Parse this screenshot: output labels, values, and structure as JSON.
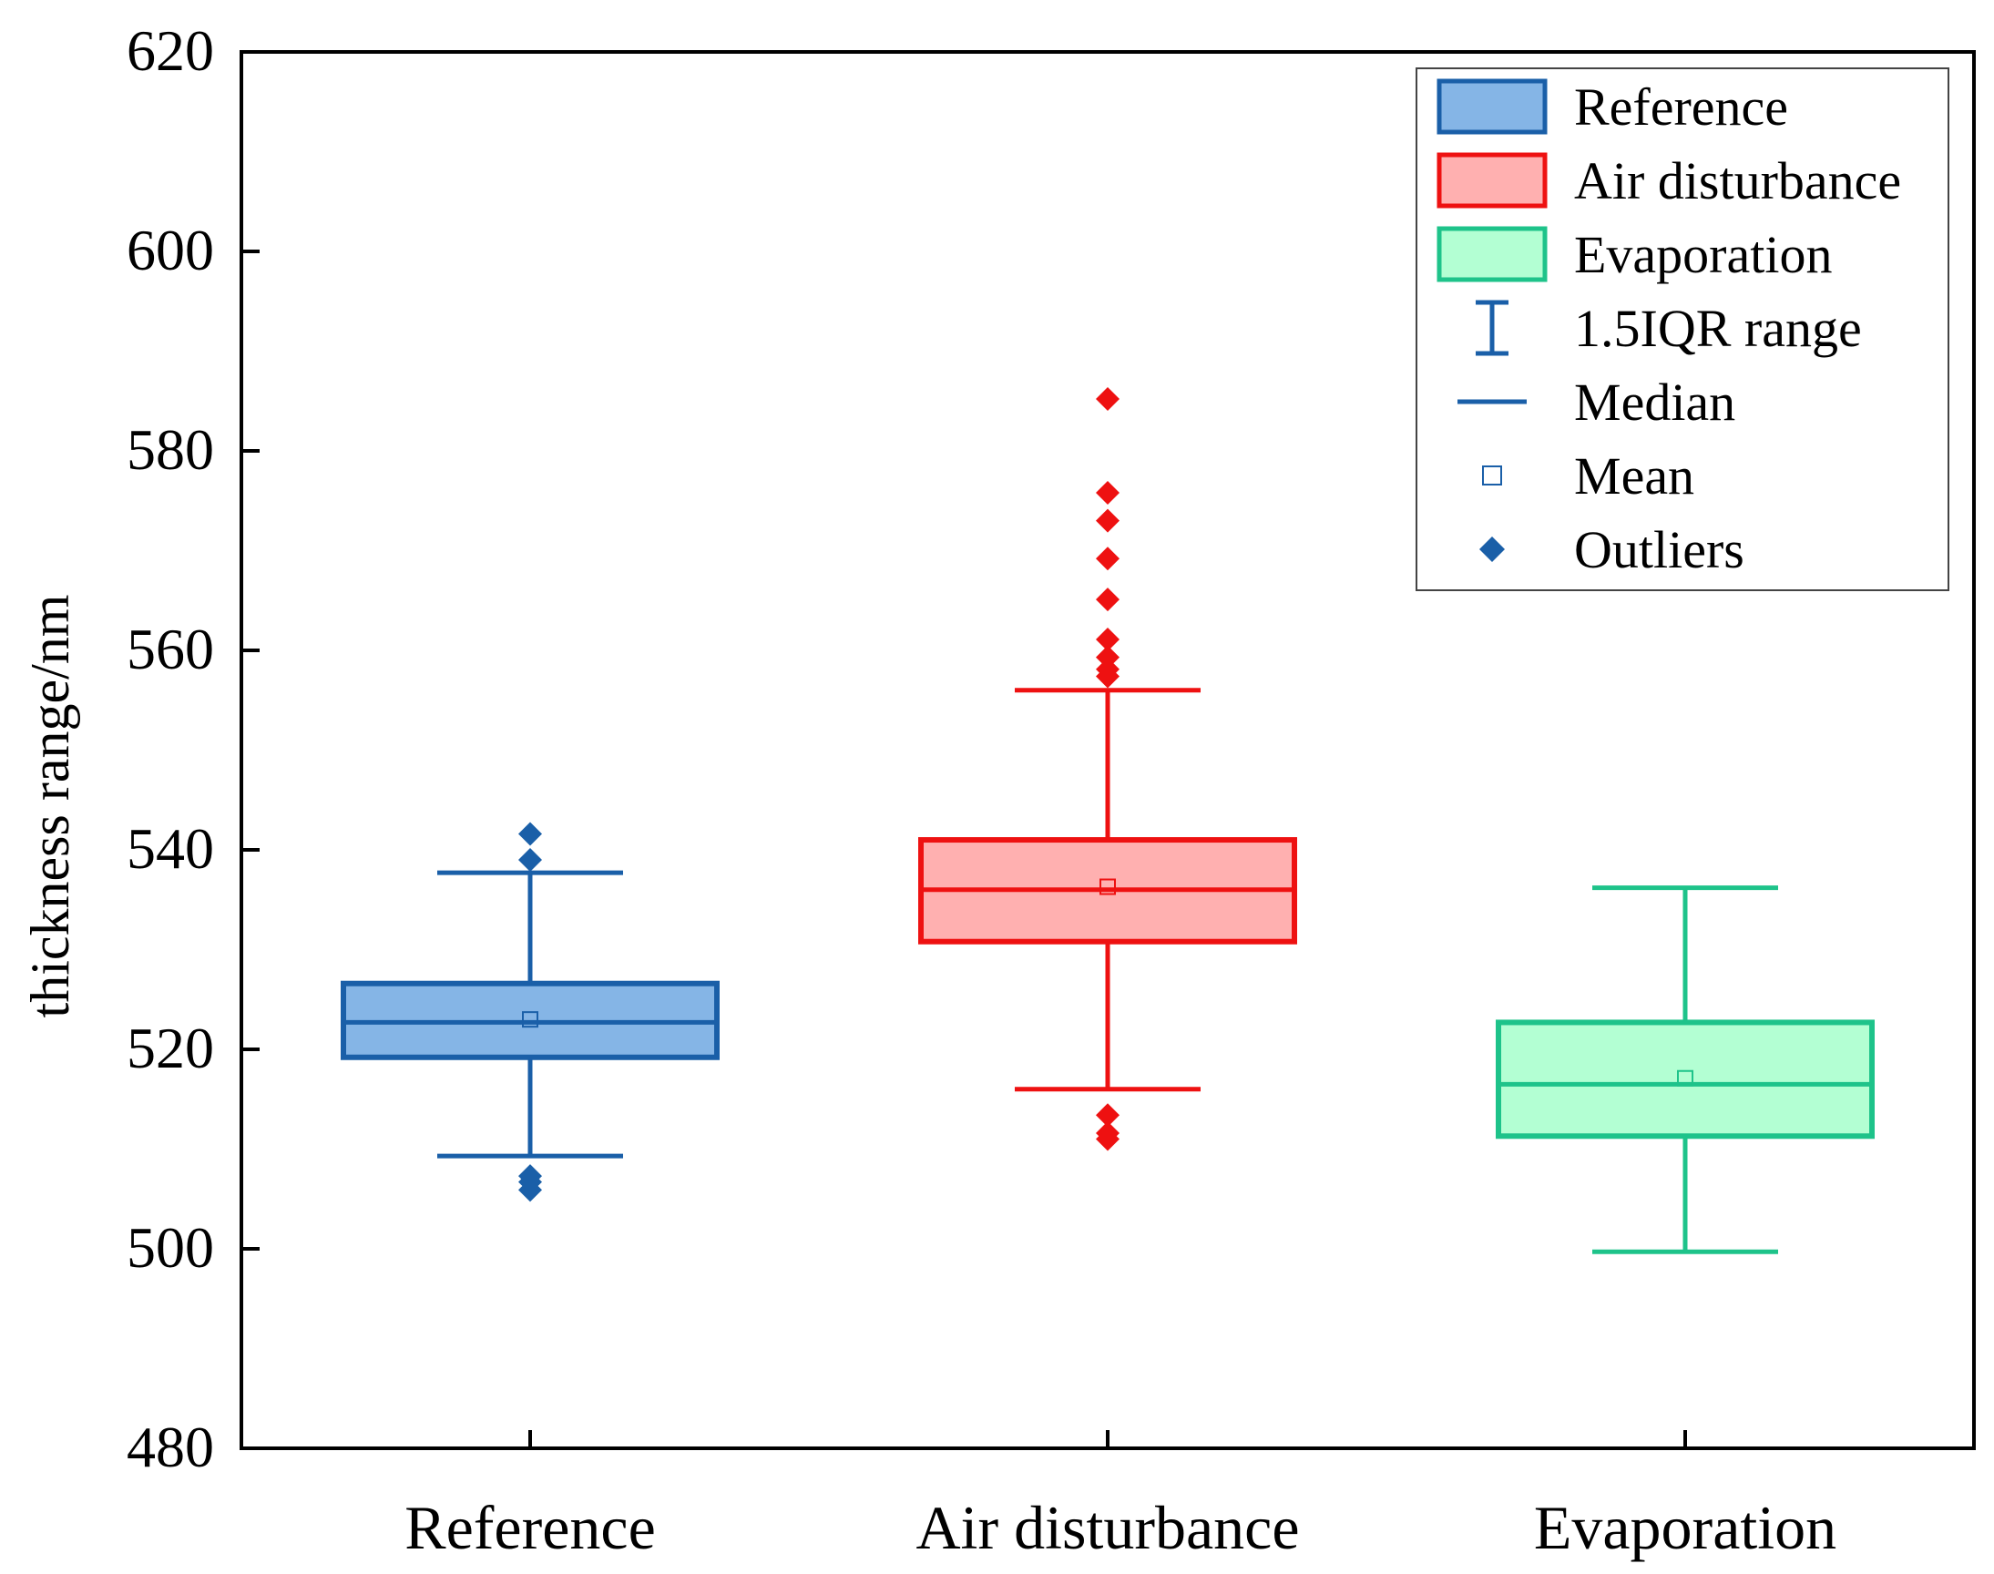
{
  "chart_data": {
    "type": "box",
    "ylabel": "thickness range/nm",
    "ylim": [
      480,
      620
    ],
    "yticks": [
      480,
      500,
      520,
      540,
      560,
      580,
      600,
      620
    ],
    "categories": [
      "Reference",
      "Air disturbance",
      "Evaporation"
    ],
    "series": [
      {
        "name": "Reference",
        "color": "#1a5fa8",
        "fill": "#85b5e6",
        "whisker_low": 509.3,
        "q1": 519.2,
        "median": 522.7,
        "q3": 526.6,
        "whisker_high": 537.7,
        "mean": 523.0,
        "outliers": [
          541.6,
          539.0,
          507.3,
          506.7,
          505.9
        ]
      },
      {
        "name": "Air disturbance",
        "color": "#ee1111",
        "fill": "#ffb0b0",
        "whisker_low": 516.0,
        "q1": 530.8,
        "median": 536.0,
        "q3": 541.0,
        "whisker_high": 556.0,
        "mean": 536.3,
        "outliers": [
          585.2,
          575.8,
          573.0,
          569.2,
          565.1,
          561.1,
          559.3,
          558.1,
          557.4,
          513.4,
          511.6,
          511.0
        ]
      },
      {
        "name": "Evaporation",
        "color": "#1ec38a",
        "fill": "#b3ffd3",
        "whisker_low": 499.7,
        "q1": 511.3,
        "median": 516.5,
        "q3": 522.7,
        "whisker_high": 536.2,
        "mean": 517.1,
        "outliers": []
      }
    ],
    "legend": {
      "position": "top-right",
      "entries": [
        "Reference",
        "Air disturbance",
        "Evaporation",
        "1.5IQR range",
        "Median",
        "Mean",
        "Outliers"
      ]
    },
    "grid": false
  }
}
